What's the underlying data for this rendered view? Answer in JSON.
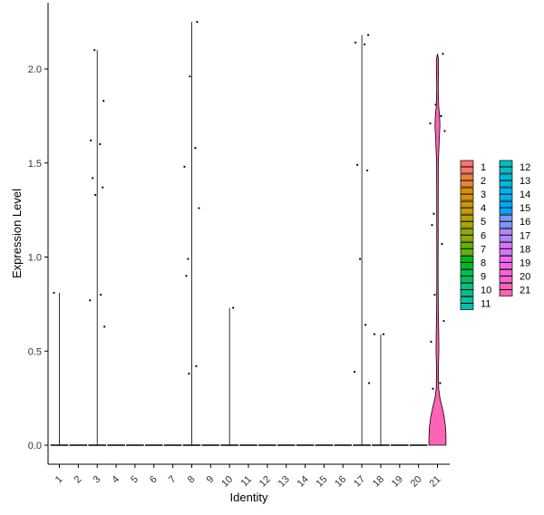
{
  "chart_data": {
    "type": "violin",
    "xlabel": "Identity",
    "ylabel": "Expression Level",
    "ylim": [
      -0.1,
      2.35
    ],
    "y_ticks": [
      0.0,
      0.5,
      1.0,
      1.5,
      2.0
    ],
    "y_tick_labels": [
      "0.0",
      "0.5",
      "1.0",
      "1.5",
      "2.0"
    ],
    "categories": [
      "1",
      "2",
      "3",
      "4",
      "5",
      "6",
      "7",
      "8",
      "9",
      "10",
      "11",
      "12",
      "13",
      "14",
      "15",
      "16",
      "17",
      "18",
      "19",
      "20",
      "21"
    ],
    "colors": [
      "#F8766D",
      "#EC8239",
      "#DB8E00",
      "#C79800",
      "#AEA200",
      "#8FAA00",
      "#64B200",
      "#00B81B",
      "#00BD5C",
      "#00C085",
      "#00C1A7",
      "#00BFC4",
      "#00BADE",
      "#00B2F3",
      "#00A6FF",
      "#7C96FF",
      "#B385FF",
      "#D874FD",
      "#EF67EB",
      "#FD61D3",
      "#FF63B6"
    ],
    "legend_position": "right",
    "grid": false,
    "series": [
      {
        "name": "1",
        "max": 0.81,
        "points": [
          0.81
        ]
      },
      {
        "name": "2",
        "max": 0.0,
        "points": []
      },
      {
        "name": "3",
        "max": 2.1,
        "points": [
          2.1,
          1.83,
          1.62,
          1.6,
          1.42,
          1.37,
          1.33,
          0.8,
          0.77,
          0.63
        ]
      },
      {
        "name": "4",
        "max": 0.0,
        "points": []
      },
      {
        "name": "5",
        "max": 0.0,
        "points": []
      },
      {
        "name": "6",
        "max": 0.0,
        "points": []
      },
      {
        "name": "7",
        "max": 0.0,
        "points": []
      },
      {
        "name": "8",
        "max": 2.25,
        "points": [
          2.25,
          1.96,
          1.58,
          1.48,
          1.26,
          0.99,
          0.9,
          0.42,
          0.38
        ]
      },
      {
        "name": "9",
        "max": 0.0,
        "points": []
      },
      {
        "name": "10",
        "max": 0.73,
        "points": [
          0.73
        ]
      },
      {
        "name": "11",
        "max": 0.0,
        "points": []
      },
      {
        "name": "12",
        "max": 0.0,
        "points": []
      },
      {
        "name": "13",
        "max": 0.0,
        "points": []
      },
      {
        "name": "14",
        "max": 0.0,
        "points": []
      },
      {
        "name": "15",
        "max": 0.0,
        "points": []
      },
      {
        "name": "16",
        "max": 0.0,
        "points": []
      },
      {
        "name": "17",
        "max": 2.18,
        "points": [
          2.18,
          2.14,
          2.13,
          1.49,
          1.46,
          0.99,
          0.64,
          0.39,
          0.33
        ]
      },
      {
        "name": "18",
        "max": 0.59,
        "points": [
          0.59,
          0.59
        ]
      },
      {
        "name": "19",
        "max": 0.0,
        "points": []
      },
      {
        "name": "20",
        "max": 0.0,
        "points": []
      },
      {
        "name": "21",
        "max": 2.08,
        "points": [
          2.08,
          1.81,
          1.75,
          1.71,
          1.67,
          1.23,
          1.17,
          1.07,
          0.8,
          0.66,
          0.55,
          0.33,
          0.3
        ]
      }
    ],
    "violin_21_profile": [
      [
        0.0,
        0.48
      ],
      [
        0.05,
        0.48
      ],
      [
        0.1,
        0.45
      ],
      [
        0.15,
        0.38
      ],
      [
        0.2,
        0.27
      ],
      [
        0.25,
        0.14
      ],
      [
        0.3,
        0.07
      ],
      [
        0.4,
        0.05
      ],
      [
        0.5,
        0.08
      ],
      [
        0.6,
        0.07
      ],
      [
        0.7,
        0.05
      ],
      [
        0.8,
        0.04
      ],
      [
        0.9,
        0.035
      ],
      [
        1.0,
        0.035
      ],
      [
        1.1,
        0.04
      ],
      [
        1.2,
        0.04
      ],
      [
        1.3,
        0.04
      ],
      [
        1.4,
        0.045
      ],
      [
        1.5,
        0.05
      ],
      [
        1.6,
        0.09
      ],
      [
        1.7,
        0.14
      ],
      [
        1.75,
        0.12
      ],
      [
        1.8,
        0.07
      ],
      [
        1.9,
        0.04
      ],
      [
        2.0,
        0.06
      ],
      [
        2.05,
        0.06
      ],
      [
        2.08,
        0.0
      ]
    ]
  }
}
